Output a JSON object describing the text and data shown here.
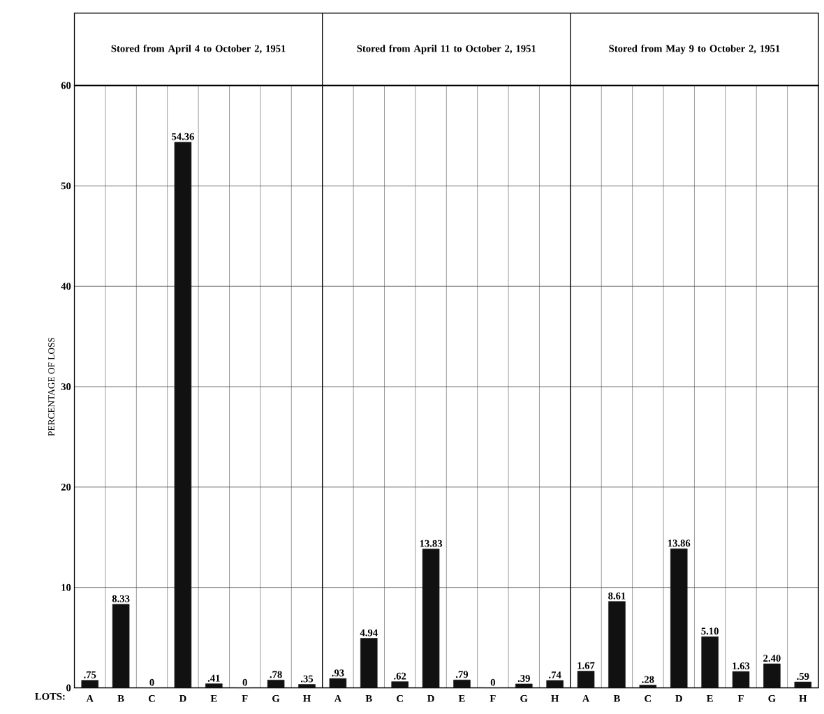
{
  "chart_data": {
    "type": "bar",
    "ylabel": "PERCENTAGE OF LOSS",
    "xlabel": "LOTS:",
    "categories": [
      "A",
      "B",
      "C",
      "D",
      "E",
      "F",
      "G",
      "H",
      "A",
      "B",
      "C",
      "D",
      "E",
      "F",
      "G",
      "H",
      "A",
      "B",
      "C",
      "D",
      "E",
      "F",
      "G",
      "H"
    ],
    "values": [
      0.75,
      8.33,
      0,
      54.36,
      0.41,
      0,
      0.78,
      0.35,
      0.93,
      4.94,
      0.62,
      13.83,
      0.79,
      0,
      0.39,
      0.74,
      1.67,
      8.61,
      0.28,
      13.86,
      5.1,
      1.63,
      2.4,
      0.59
    ],
    "value_labels": [
      ".75",
      "8.33",
      "0",
      "54.36",
      ".41",
      "0",
      ".78",
      ".35",
      ".93",
      "4.94",
      ".62",
      "13.83",
      ".79",
      "0",
      ".39",
      ".74",
      "1.67",
      "8.61",
      ".28",
      "13.86",
      "5.10",
      "1.63",
      "2.40",
      ".59"
    ],
    "color": "#111111",
    "ylim": [
      0,
      60
    ],
    "yticks": [
      0,
      10,
      20,
      30,
      40,
      50,
      60
    ],
    "grid": true,
    "annotations": [
      "Stored from April 4 to October 2, 1951",
      "Stored from April 11 to October 2, 1951",
      "Stored from May 9 to October 2, 1951"
    ]
  }
}
